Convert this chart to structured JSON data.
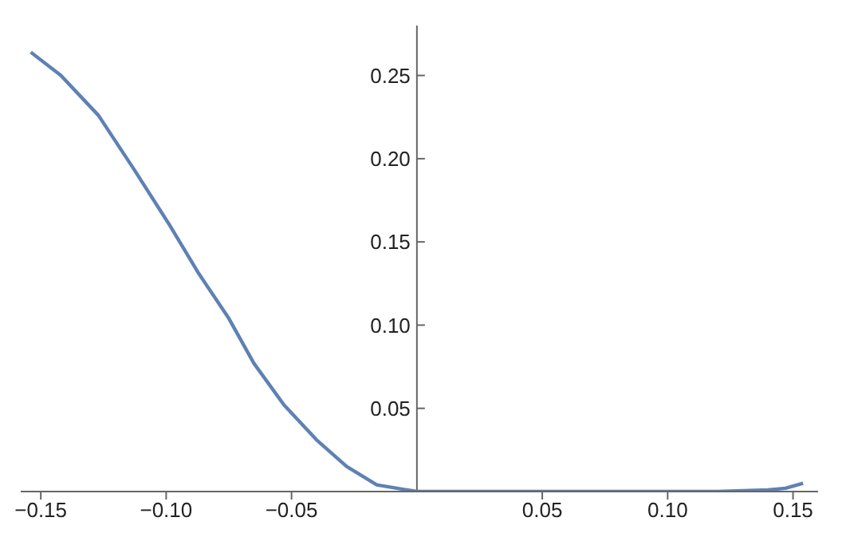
{
  "chart_data": {
    "type": "line",
    "x": [
      -0.154,
      -0.142,
      -0.127,
      -0.113,
      -0.099,
      -0.087,
      -0.075,
      -0.065,
      -0.053,
      -0.04,
      -0.028,
      -0.016,
      -0.004,
      0,
      0.04,
      0.08,
      0.12,
      0.14,
      0.147,
      0.154
    ],
    "series": [
      {
        "color": "#5e81b5",
        "values": [
          0.264,
          0.25,
          0.226,
          0.194,
          0.161,
          0.131,
          0.104,
          0.077,
          0.052,
          0.031,
          0.015,
          0.004,
          0.001,
          0,
          0,
          0,
          0,
          0.001,
          0.002,
          0.005
        ]
      }
    ],
    "xlim": [
      -0.158,
      0.16
    ],
    "ylim": [
      0,
      0.28
    ],
    "xticks": [
      {
        "value": -0.15,
        "label": "−0.15"
      },
      {
        "value": -0.1,
        "label": "−0.10"
      },
      {
        "value": -0.05,
        "label": "−0.05"
      },
      {
        "value": 0.05,
        "label": "0.05"
      },
      {
        "value": 0.1,
        "label": "0.10"
      },
      {
        "value": 0.15,
        "label": "0.15"
      }
    ],
    "yticks": [
      {
        "value": 0.05,
        "label": "0.05"
      },
      {
        "value": 0.1,
        "label": "0.10"
      },
      {
        "value": 0.15,
        "label": "0.15"
      },
      {
        "value": 0.2,
        "label": "0.20"
      },
      {
        "value": 0.25,
        "label": "0.25"
      }
    ],
    "marker": "none",
    "line_style": "solid"
  }
}
